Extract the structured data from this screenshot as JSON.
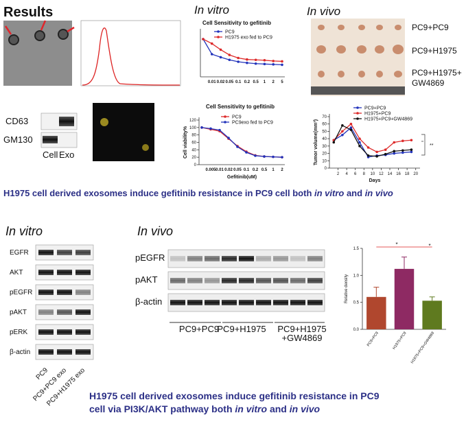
{
  "title": "Results",
  "top": {
    "in_vitro": "In vitro",
    "in_vivo": "In vivo",
    "blot_labels": [
      "CD63",
      "GM130"
    ],
    "blot_lanes": [
      "Cell",
      "Exo"
    ],
    "tumor_groups": [
      [
        "PC9+PC9"
      ],
      [
        "PC9+H1975"
      ],
      [
        "PC9+H1975+",
        "GW4869"
      ]
    ],
    "caption": [
      "H1975 cell derived exosomes induce gefitinib resistance in PC9 cell both ",
      "in vitro",
      " and ",
      "in vivo"
    ]
  },
  "bottom": {
    "in_vitro": "In vitro",
    "in_vivo": "In vivo",
    "vitro_rows": [
      "EGFR",
      "AKT",
      "pEGFR",
      "pAKT",
      "pERK",
      "β-actin"
    ],
    "vitro_lanes": [
      "PC9",
      "PC9+PC9 exo",
      "PC9+H1975 exo"
    ],
    "vivo_rows": [
      "pEGFR",
      "pAKT",
      "β-actin"
    ],
    "vivo_groups": [
      [
        "PC9+PC9"
      ],
      [
        "PC9+H1975"
      ],
      [
        "PC9+H1975",
        "+GW4869"
      ]
    ],
    "caption": [
      "H1975 cell derived exosomes induce gefitinib resistance in PC9",
      "cell via PI3K/AKT pathway both ",
      "in vitro",
      " and ",
      "in vivo"
    ]
  },
  "chart_data": [
    {
      "type": "line",
      "title": "Cell Sensitivity to gefitinib",
      "categories": [
        null,
        "0.01",
        "0.02",
        "0.05",
        "0.1",
        "0.2",
        "0.5",
        "1",
        "2",
        "5"
      ],
      "ylim": [
        0,
        120
      ],
      "series": [
        {
          "name": "PC9",
          "color": "#2233bb",
          "values": [
            100,
            60,
            52,
            45,
            40,
            37,
            35,
            34,
            33,
            32
          ]
        },
        {
          "name": "H1975 exo fed to PC9",
          "color": "#dd2a2a",
          "values": [
            100,
            88,
            72,
            58,
            50,
            46,
            45,
            44,
            42,
            41
          ]
        }
      ]
    },
    {
      "type": "line",
      "title": "Cell Sensitivity to gefitinib",
      "xlabel": "Gefitinib(uM)",
      "ylabel": "Cell viability%",
      "categories": [
        null,
        "0.005",
        "0.01",
        "0.02",
        "0.05",
        "0.1",
        "0.2",
        "0.5",
        "1",
        "2"
      ],
      "ylim": [
        0,
        120
      ],
      "yticks": [
        0,
        20,
        40,
        60,
        80,
        100,
        120
      ],
      "series": [
        {
          "name": "PC9",
          "color": "#dd2a2a",
          "values": [
            100,
            95,
            90,
            70,
            50,
            35,
            25,
            22,
            21,
            20
          ]
        },
        {
          "name": "PC9exo fed to PC9",
          "color": "#2233bb",
          "values": [
            100,
            97,
            93,
            72,
            48,
            33,
            24,
            22,
            21,
            20
          ]
        }
      ]
    },
    {
      "type": "line",
      "xlabel": "Days",
      "ylabel": "Tumor volume(mm³)",
      "x": [
        1,
        3,
        5,
        7,
        9,
        11,
        13,
        15,
        17,
        19
      ],
      "xlim": [
        0,
        21
      ],
      "xticks": [
        2,
        4,
        6,
        8,
        10,
        12,
        14,
        16,
        18,
        20
      ],
      "ylim": [
        0,
        70
      ],
      "yticks": [
        0,
        10,
        20,
        30,
        40,
        50,
        60,
        70
      ],
      "series": [
        {
          "name": "PC9+PC9",
          "color": "#2233bb",
          "values": [
            38,
            45,
            55,
            35,
            15,
            17,
            18,
            20,
            21,
            22
          ]
        },
        {
          "name": "H1975+PC9",
          "color": "#dd2a2a",
          "values": [
            38,
            50,
            60,
            40,
            28,
            22,
            25,
            35,
            37,
            38
          ]
        },
        {
          "name": "H1975+PC9+GW4869",
          "color": "#111111",
          "values": [
            35,
            58,
            52,
            30,
            17,
            16,
            19,
            23,
            24,
            25
          ]
        }
      ],
      "annotations": [
        "**"
      ]
    },
    {
      "type": "bar",
      "ylabel": "Relative density",
      "categories": [
        "PC9+PC9",
        "H1975+PC9",
        "H1975+PC9+GW4869"
      ],
      "values": [
        0.6,
        1.12,
        0.53
      ],
      "errors": [
        0.18,
        0.22,
        0.07
      ],
      "colors": [
        "#b0472e",
        "#8e2a63",
        "#5f7a1f"
      ],
      "ylim": [
        0,
        1.5
      ],
      "yticks": [
        {
          "value": 0,
          "label": "0.0"
        },
        {
          "value": 0.5,
          "label": "0.5"
        },
        {
          "value": 1,
          "label": "1.0"
        },
        {
          "value": 1.5,
          "label": "1.5"
        }
      ],
      "annotations": [
        "*",
        "*"
      ]
    }
  ]
}
